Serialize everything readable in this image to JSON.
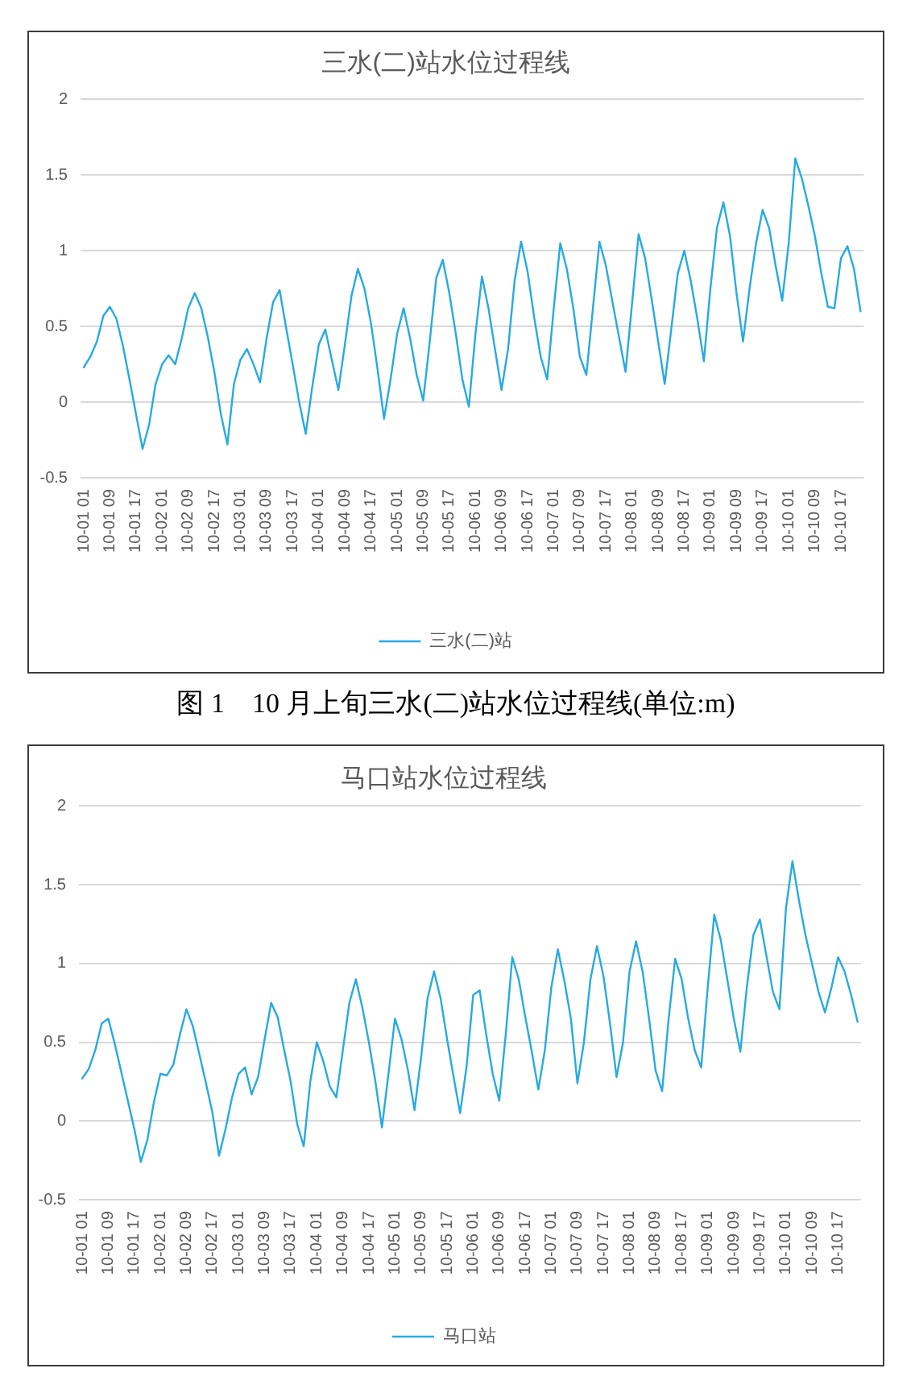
{
  "chart_data": [
    {
      "type": "line",
      "title": "三水(二)站水位过程线",
      "categories": [
        "10-01 01",
        null,
        null,
        null,
        "10-01 09",
        null,
        null,
        null,
        "10-01 17",
        null,
        null,
        null,
        "10-02 01",
        null,
        null,
        null,
        "10-02 09",
        null,
        null,
        null,
        "10-02 17",
        null,
        null,
        null,
        "10-03 01",
        null,
        null,
        null,
        "10-03 09",
        null,
        null,
        null,
        "10-03 17",
        null,
        null,
        null,
        "10-04 01",
        null,
        null,
        null,
        "10-04 09",
        null,
        null,
        null,
        "10-04 17",
        null,
        null,
        null,
        "10-05 01",
        null,
        null,
        null,
        "10-05 09",
        null,
        null,
        null,
        "10-05 17",
        null,
        null,
        null,
        "10-06 01",
        null,
        null,
        null,
        "10-06 09",
        null,
        null,
        null,
        "10-06 17",
        null,
        null,
        null,
        "10-07 01",
        null,
        null,
        null,
        "10-07 09",
        null,
        null,
        null,
        "10-07 17",
        null,
        null,
        null,
        "10-08 01",
        null,
        null,
        null,
        "10-08 09",
        null,
        null,
        null,
        "10-08 17",
        null,
        null,
        null,
        "10-09 01",
        null,
        null,
        null,
        "10-09 09",
        null,
        null,
        null,
        "10-09 17",
        null,
        null,
        null,
        "10-10 01",
        null,
        null,
        null,
        "10-10 09",
        null,
        null,
        null,
        "10-10 17",
        null,
        null,
        null
      ],
      "series": [
        {
          "name": "三水(二)站",
          "color": "#27aae1",
          "values": [
            0.23,
            0.3,
            0.4,
            0.57,
            0.63,
            0.55,
            0.37,
            0.15,
            -0.08,
            -0.31,
            -0.15,
            0.12,
            0.25,
            0.31,
            0.25,
            0.42,
            0.62,
            0.72,
            0.62,
            0.43,
            0.2,
            -0.08,
            -0.28,
            0.12,
            0.28,
            0.35,
            0.25,
            0.13,
            0.42,
            0.66,
            0.74,
            0.49,
            0.25,
            0.0,
            -0.21,
            0.1,
            0.38,
            0.48,
            0.28,
            0.08,
            0.38,
            0.7,
            0.88,
            0.75,
            0.52,
            0.22,
            -0.11,
            0.15,
            0.45,
            0.62,
            0.42,
            0.18,
            0.01,
            0.4,
            0.82,
            0.94,
            0.72,
            0.45,
            0.15,
            -0.03,
            0.45,
            0.83,
            0.62,
            0.35,
            0.08,
            0.35,
            0.8,
            1.06,
            0.86,
            0.56,
            0.3,
            0.15,
            0.62,
            1.05,
            0.88,
            0.62,
            0.3,
            0.18,
            0.62,
            1.06,
            0.9,
            0.66,
            0.43,
            0.2,
            0.65,
            1.11,
            0.95,
            0.68,
            0.4,
            0.12,
            0.48,
            0.85,
            1.0,
            0.8,
            0.55,
            0.27,
            0.75,
            1.15,
            1.32,
            1.1,
            0.72,
            0.4,
            0.75,
            1.05,
            1.27,
            1.15,
            0.9,
            0.67,
            1.05,
            1.61,
            1.48,
            1.3,
            1.1,
            0.85,
            0.63,
            0.62,
            0.95,
            1.03,
            0.88,
            0.6
          ]
        }
      ],
      "ylim": [
        -0.5,
        2
      ],
      "yticks": [
        -0.5,
        0,
        0.5,
        1,
        1.5,
        2
      ],
      "grid": "y",
      "legend": "bottom",
      "marker": "none",
      "annotations": [
        "图 1    10 月上旬三水(二)站水位过程线(单位:m)"
      ]
    },
    {
      "type": "line",
      "title": "马口站水位过程线",
      "categories": [
        "10-01 01",
        null,
        null,
        null,
        "10-01 09",
        null,
        null,
        null,
        "10-01 17",
        null,
        null,
        null,
        "10-02 01",
        null,
        null,
        null,
        "10-02 09",
        null,
        null,
        null,
        "10-02 17",
        null,
        null,
        null,
        "10-03 01",
        null,
        null,
        null,
        "10-03 09",
        null,
        null,
        null,
        "10-03 17",
        null,
        null,
        null,
        "10-04 01",
        null,
        null,
        null,
        "10-04 09",
        null,
        null,
        null,
        "10-04 17",
        null,
        null,
        null,
        "10-05 01",
        null,
        null,
        null,
        "10-05 09",
        null,
        null,
        null,
        "10-05 17",
        null,
        null,
        null,
        "10-06 01",
        null,
        null,
        null,
        "10-06 09",
        null,
        null,
        null,
        "10-06 17",
        null,
        null,
        null,
        "10-07 01",
        null,
        null,
        null,
        "10-07 09",
        null,
        null,
        null,
        "10-07 17",
        null,
        null,
        null,
        "10-08 01",
        null,
        null,
        null,
        "10-08 09",
        null,
        null,
        null,
        "10-08 17",
        null,
        null,
        null,
        "10-09 01",
        null,
        null,
        null,
        "10-09 09",
        null,
        null,
        null,
        "10-09 17",
        null,
        null,
        null,
        "10-10 01",
        null,
        null,
        null,
        "10-10 09",
        null,
        null,
        null,
        "10-10 17",
        null,
        null,
        null
      ],
      "series": [
        {
          "name": "马口站",
          "color": "#27aae1",
          "values": [
            0.27,
            0.33,
            0.45,
            0.62,
            0.65,
            0.49,
            0.31,
            0.13,
            -0.05,
            -0.26,
            -0.12,
            0.12,
            0.3,
            0.29,
            0.36,
            0.55,
            0.71,
            0.6,
            0.42,
            0.24,
            0.05,
            -0.22,
            -0.05,
            0.15,
            0.3,
            0.34,
            0.17,
            0.28,
            0.52,
            0.75,
            0.66,
            0.45,
            0.25,
            -0.02,
            -0.16,
            0.25,
            0.5,
            0.38,
            0.22,
            0.15,
            0.45,
            0.75,
            0.9,
            0.72,
            0.5,
            0.25,
            -0.04,
            0.3,
            0.65,
            0.52,
            0.32,
            0.07,
            0.4,
            0.78,
            0.95,
            0.78,
            0.52,
            0.28,
            0.05,
            0.35,
            0.8,
            0.83,
            0.55,
            0.3,
            0.13,
            0.55,
            1.04,
            0.9,
            0.66,
            0.44,
            0.2,
            0.45,
            0.85,
            1.09,
            0.89,
            0.65,
            0.24,
            0.5,
            0.9,
            1.11,
            0.92,
            0.62,
            0.28,
            0.5,
            0.95,
            1.14,
            0.95,
            0.65,
            0.32,
            0.19,
            0.65,
            1.03,
            0.9,
            0.65,
            0.45,
            0.34,
            0.85,
            1.31,
            1.15,
            0.9,
            0.65,
            0.44,
            0.85,
            1.18,
            1.28,
            1.05,
            0.82,
            0.71,
            1.35,
            1.65,
            1.4,
            1.18,
            1.0,
            0.82,
            0.69,
            0.85,
            1.04,
            0.95,
            0.8,
            0.63
          ]
        }
      ],
      "ylim": [
        -0.5,
        2
      ],
      "yticks": [
        -0.5,
        0,
        0.5,
        1,
        1.5,
        2
      ],
      "grid": "y",
      "legend": "bottom",
      "marker": "none"
    }
  ]
}
